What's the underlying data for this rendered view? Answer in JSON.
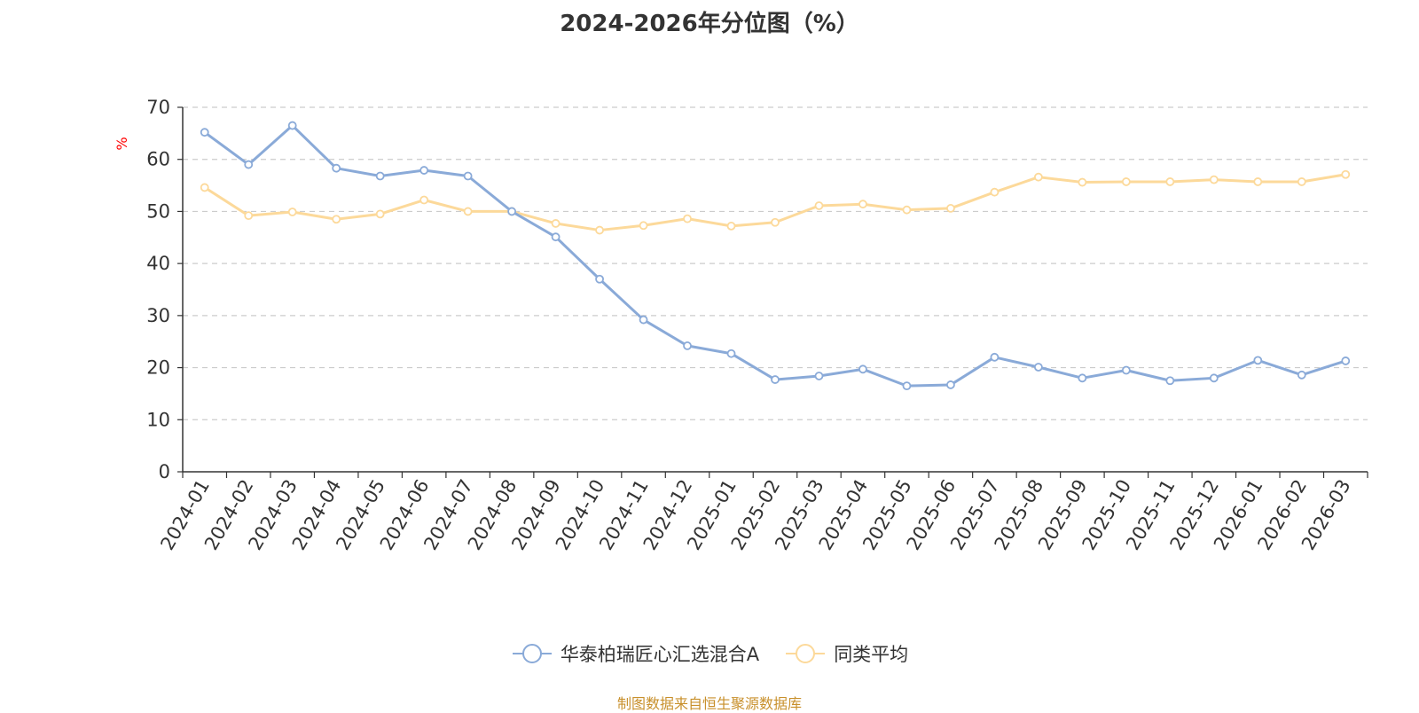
{
  "chart_data": {
    "type": "line",
    "title": "2024-2026年分位图（%）",
    "ylabel": "%",
    "xlabel": "",
    "ylim": [
      0,
      70
    ],
    "yticks": [
      0,
      10,
      20,
      30,
      40,
      50,
      60,
      70
    ],
    "grid": true,
    "legend_position": "bottom-center",
    "categories": [
      "2024-01",
      "2024-02",
      "2024-03",
      "2024-04",
      "2024-05",
      "2024-06",
      "2024-07",
      "2024-08",
      "2024-09",
      "2024-10",
      "2024-11",
      "2024-12",
      "2025-01",
      "2025-02",
      "2025-03",
      "2025-04",
      "2025-05",
      "2025-06",
      "2025-07",
      "2025-08",
      "2025-09",
      "2025-10",
      "2025-11",
      "2025-12",
      "2026-01",
      "2026-02",
      "2026-03"
    ],
    "series": [
      {
        "name": "华泰柏瑞匠心汇选混合A",
        "color": "#8aaad8",
        "values": [
          65.2,
          59.0,
          66.5,
          58.3,
          56.8,
          57.9,
          56.8,
          50.0,
          45.1,
          37.0,
          29.2,
          24.2,
          22.7,
          17.7,
          18.4,
          19.7,
          16.5,
          16.7,
          22.0,
          20.1,
          18.0,
          19.5,
          17.5,
          18.0,
          21.4,
          18.6,
          21.3
        ]
      },
      {
        "name": "同类平均",
        "color": "#fcd99a",
        "values": [
          54.6,
          49.2,
          49.9,
          48.5,
          49.5,
          52.2,
          50.0,
          50.0,
          47.7,
          46.4,
          47.3,
          48.6,
          47.2,
          47.9,
          51.1,
          51.4,
          50.3,
          50.6,
          53.7,
          56.6,
          55.6,
          55.7,
          55.7,
          56.1,
          55.7,
          55.7,
          57.1
        ]
      }
    ]
  },
  "source_note": "制图数据来自恒生聚源数据库"
}
